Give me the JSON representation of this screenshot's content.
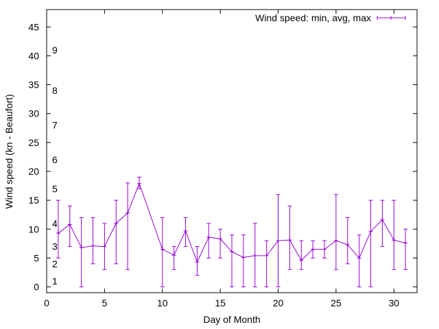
{
  "chart_data": {
    "type": "line",
    "title": "",
    "xlabel": "Day of Month",
    "ylabel": "Wind speed (kn - Beaufort)",
    "xlim": [
      0,
      32
    ],
    "ylim": [
      -1,
      48
    ],
    "x_ticks": [
      0,
      5,
      10,
      15,
      20,
      25,
      30
    ],
    "y_ticks": [
      0,
      5,
      10,
      15,
      20,
      25,
      30,
      35,
      40,
      45
    ],
    "grid": false,
    "legend_position": "top-right",
    "series": [
      {
        "name": "Wind speed: min, avg, max",
        "color": "#9400d3",
        "x": [
          1,
          2,
          3,
          4,
          5,
          6,
          7,
          8,
          10,
          11,
          12,
          13,
          14,
          15,
          16,
          17,
          18,
          19,
          20,
          21,
          22,
          23,
          24,
          25,
          26,
          27,
          28,
          29,
          30,
          31
        ],
        "avg": [
          9.3,
          10.8,
          6.8,
          7.1,
          7.0,
          11.0,
          12.8,
          17.9,
          6.5,
          5.5,
          9.7,
          4.3,
          8.6,
          8.3,
          6.1,
          5.1,
          5.4,
          5.4,
          8.0,
          8.1,
          4.6,
          6.5,
          6.5,
          8.0,
          7.3,
          5.0,
          9.6,
          11.6,
          8.1,
          7.6
        ],
        "min": [
          5,
          7,
          0,
          4,
          3,
          4,
          3,
          17,
          0,
          3,
          7,
          2,
          5,
          5,
          0,
          0,
          0,
          0,
          0,
          3,
          3,
          5,
          5,
          3,
          4,
          0,
          0,
          7,
          3,
          3
        ],
        "max": [
          15,
          14,
          12,
          12,
          11,
          15,
          18,
          19,
          12,
          7,
          12,
          7,
          11,
          10,
          9,
          9,
          11,
          8,
          16,
          14,
          8,
          8,
          8,
          16,
          12,
          9,
          15,
          15,
          15,
          10
        ]
      }
    ],
    "beaufort_labels": [
      {
        "text": "1",
        "y": 1
      },
      {
        "text": "2",
        "y": 4
      },
      {
        "text": "3",
        "y": 7
      },
      {
        "text": "4",
        "y": 11
      },
      {
        "text": "5",
        "y": 17
      },
      {
        "text": "6",
        "y": 22
      },
      {
        "text": "7",
        "y": 28
      },
      {
        "text": "8",
        "y": 34
      },
      {
        "text": "9",
        "y": 41
      }
    ]
  }
}
